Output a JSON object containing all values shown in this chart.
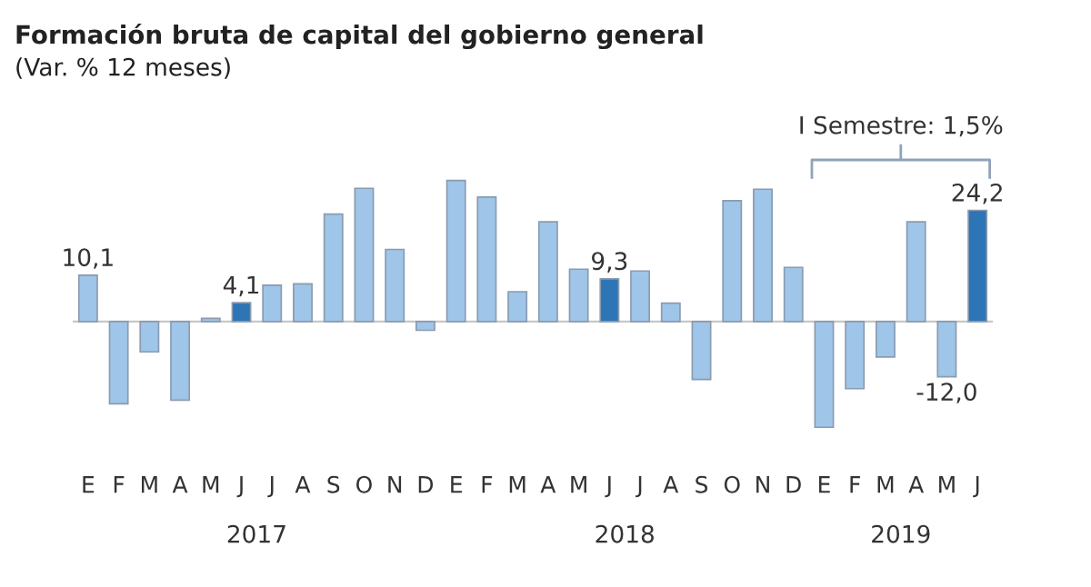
{
  "chart_data": {
    "type": "bar",
    "title": "Formación bruta de capital del gobierno general",
    "subtitle": "(Var. % 12 meses)",
    "categories": [
      "E",
      "F",
      "M",
      "A",
      "M",
      "J",
      "J",
      "A",
      "S",
      "O",
      "N",
      "D",
      "E",
      "F",
      "M",
      "A",
      "M",
      "J",
      "J",
      "A",
      "S",
      "O",
      "N",
      "D",
      "E",
      "F",
      "M",
      "A",
      "M",
      "J"
    ],
    "values": [
      10.1,
      -17.9,
      -6.6,
      -17.1,
      0.7,
      4.1,
      7.9,
      8.2,
      23.4,
      29.0,
      15.7,
      -1.9,
      30.7,
      27.1,
      6.5,
      21.7,
      11.4,
      9.3,
      11.0,
      4.0,
      -12.6,
      26.3,
      28.8,
      11.8,
      -23.0,
      -14.6,
      -7.7,
      21.7,
      -12.0,
      24.2
    ],
    "colors": [
      "#9fc5e8",
      "#9fc5e8",
      "#9fc5e8",
      "#9fc5e8",
      "#9fc5e8",
      "#2e75b6",
      "#9fc5e8",
      "#9fc5e8",
      "#9fc5e8",
      "#9fc5e8",
      "#9fc5e8",
      "#9fc5e8",
      "#9fc5e8",
      "#9fc5e8",
      "#9fc5e8",
      "#9fc5e8",
      "#9fc5e8",
      "#2e75b6",
      "#9fc5e8",
      "#9fc5e8",
      "#9fc5e8",
      "#9fc5e8",
      "#9fc5e8",
      "#9fc5e8",
      "#9fc5e8",
      "#9fc5e8",
      "#9fc5e8",
      "#9fc5e8",
      "#9fc5e8",
      "#2e75b6"
    ],
    "value_labels": [
      "10,1",
      null,
      null,
      null,
      null,
      "4,1",
      null,
      null,
      null,
      null,
      null,
      null,
      null,
      null,
      null,
      null,
      null,
      "9,3",
      null,
      null,
      null,
      null,
      null,
      null,
      null,
      null,
      null,
      null,
      "-12,0",
      "24,2"
    ],
    "annotations": [
      "I Semestre: 1,5%",
      "2017",
      "2018",
      "2019"
    ],
    "grid": false
  }
}
